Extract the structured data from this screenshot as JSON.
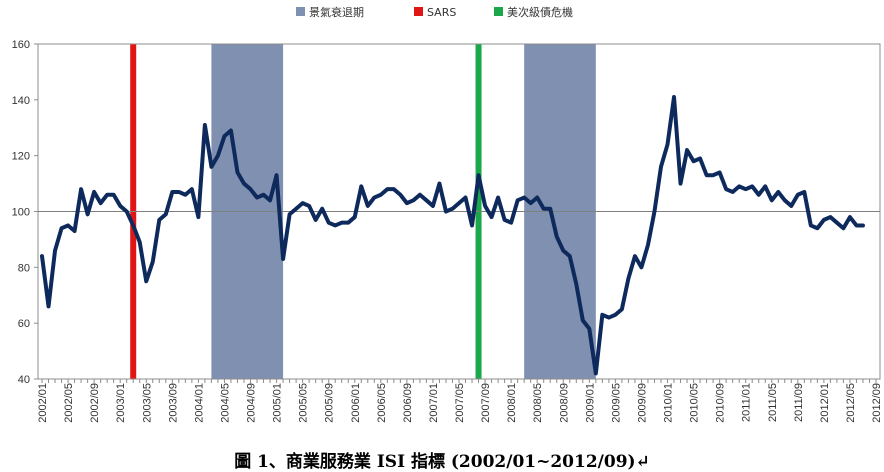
{
  "chart_data": {
    "type": "line",
    "title": "",
    "xlabel": "",
    "ylabel": "",
    "ylim": [
      40,
      160
    ],
    "yticks": [
      40,
      60,
      80,
      100,
      120,
      140,
      160
    ],
    "reference_line": 100,
    "grid": false,
    "legend_position": "top-center",
    "x_start": "2002/01",
    "x_end": "2012/09",
    "x_tick_labels": [
      "2002/01",
      "2002/05",
      "2002/09",
      "2003/01",
      "2003/05",
      "2003/09",
      "2004/01",
      "2004/05",
      "2004/09",
      "2005/01",
      "2005/05",
      "2005/09",
      "2006/01",
      "2006/05",
      "2006/09",
      "2007/01",
      "2007/05",
      "2007/09",
      "2008/01",
      "2008/05",
      "2008/09",
      "2009/01",
      "2009/05",
      "2009/09",
      "2010/01",
      "2010/05",
      "2010/09",
      "2011/01",
      "2011/05",
      "2011/09",
      "2012/01",
      "2012/05",
      "2012/09"
    ],
    "series": [
      {
        "name": "",
        "color": "#0e2a5c",
        "values": [
          84,
          66,
          86,
          94,
          95,
          93,
          108,
          99,
          107,
          103,
          106,
          106,
          102,
          100,
          95,
          89,
          75,
          82,
          97,
          99,
          107,
          107,
          106,
          108,
          98,
          131,
          116,
          120,
          127,
          129,
          114,
          110,
          108,
          105,
          106,
          104,
          113,
          83,
          99,
          101,
          103,
          102,
          97,
          101,
          96,
          95,
          96,
          96,
          98,
          109,
          102,
          105,
          106,
          108,
          108,
          106,
          103,
          104,
          106,
          104,
          102,
          110,
          100,
          101,
          103,
          105,
          95,
          113,
          102,
          98,
          105,
          97,
          96,
          104,
          105,
          103,
          105,
          101,
          101,
          91,
          86,
          84,
          74,
          61,
          58,
          42,
          63,
          62,
          63,
          65,
          76,
          84,
          80,
          88,
          100,
          116,
          124,
          141,
          110,
          122,
          118,
          119,
          113,
          113,
          114,
          108,
          107,
          109,
          108,
          109,
          106,
          109,
          104,
          107,
          104,
          102,
          106,
          107,
          95,
          94,
          97,
          98,
          96,
          94,
          98,
          95,
          95
        ]
      }
    ],
    "shaded_periods": [
      {
        "name": "景氣衰退期",
        "color": "#8090b0",
        "start": "2004/03",
        "end": "2005/02"
      },
      {
        "name": "景氣衰退期",
        "color": "#8090b0",
        "start": "2008/03",
        "end": "2009/02"
      }
    ],
    "event_lines": [
      {
        "name": "SARS",
        "color": "#e01515",
        "date": "2003/03"
      },
      {
        "name": "美次級債危機",
        "color": "#1aa84a",
        "date": "2007/08"
      }
    ],
    "legend": [
      {
        "label": "景氣衰退期",
        "color": "#8090b0"
      },
      {
        "label": "SARS",
        "color": "#e01515"
      },
      {
        "label": "美次級債危機",
        "color": "#1aa84a"
      }
    ]
  },
  "caption": "圖 1、商業服務業 ISI 指標 (2002/01~2012/09)↵"
}
